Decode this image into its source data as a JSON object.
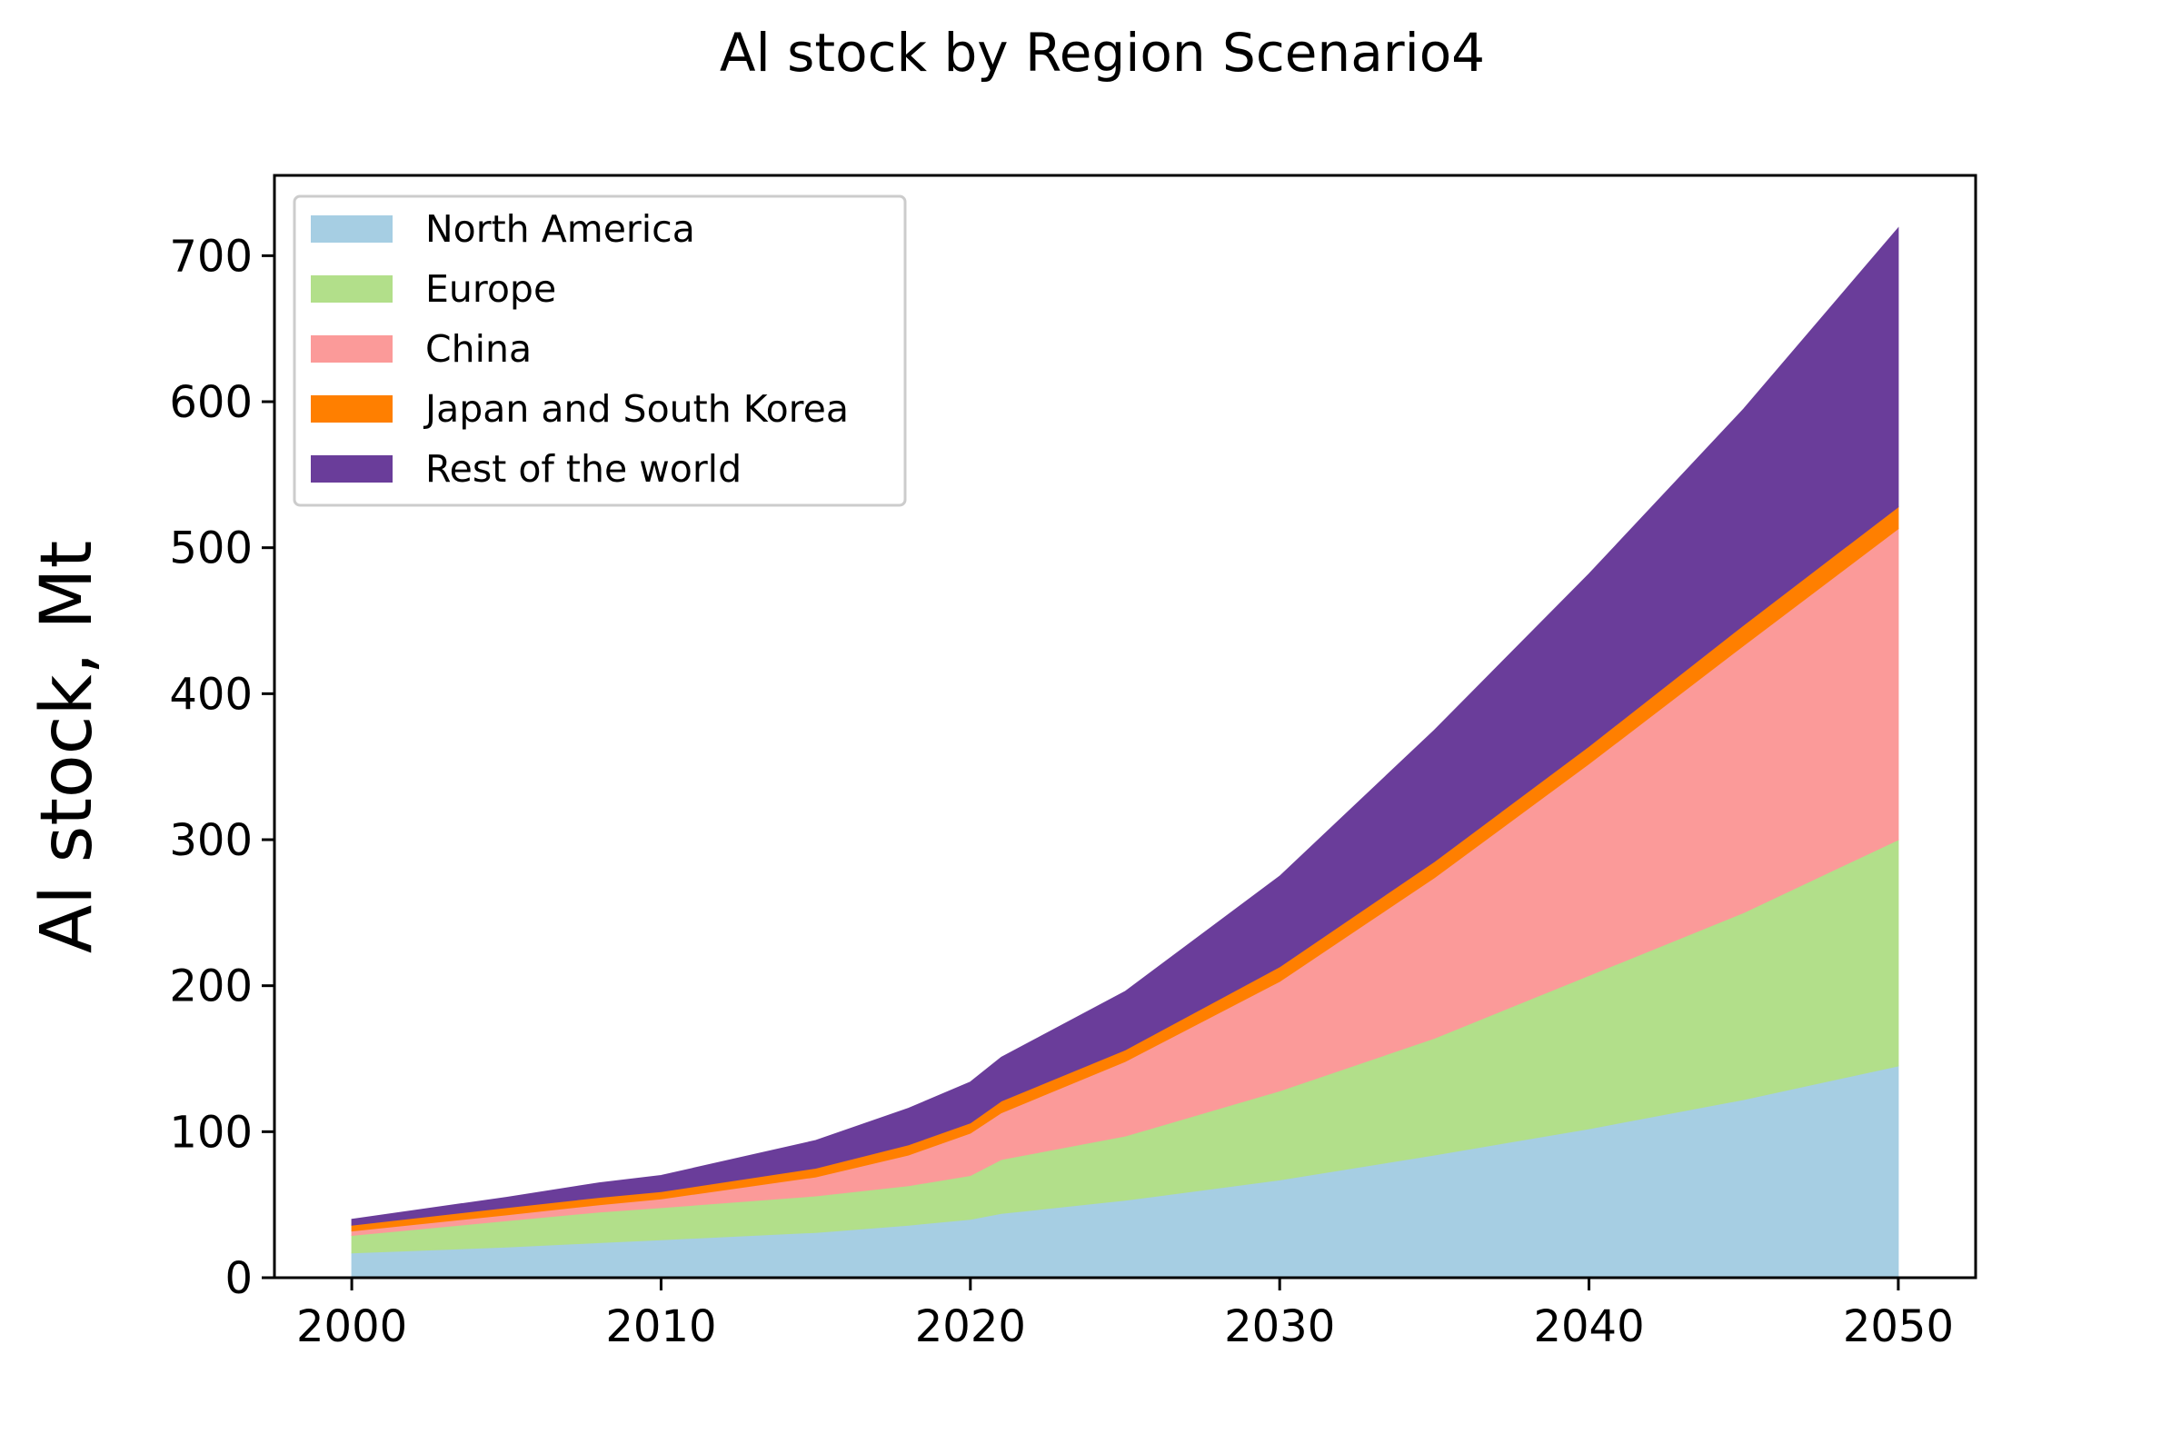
{
  "chart_data": {
    "type": "area",
    "stacked": true,
    "title": "Al stock by Region Scenario4",
    "xlabel": "",
    "ylabel": "Al stock, Mt",
    "xlim": [
      1997.5,
      2052.5
    ],
    "ylim": [
      0,
      755
    ],
    "x_ticks": [
      2000,
      2010,
      2020,
      2030,
      2040,
      2050
    ],
    "y_ticks": [
      0,
      100,
      200,
      300,
      400,
      500,
      600,
      700
    ],
    "grid": false,
    "legend_position": "top-left",
    "x": [
      2000,
      2005,
      2008,
      2010,
      2015,
      2018,
      2020,
      2021,
      2025,
      2030,
      2035,
      2040,
      2045,
      2050
    ],
    "series": [
      {
        "name": "North America",
        "color": "#a6cee3",
        "values": [
          17,
          21,
          24,
          26,
          31,
          36,
          40,
          44,
          53,
          67,
          84,
          102,
          122,
          145
        ]
      },
      {
        "name": "Europe",
        "color": "#b2df8a",
        "values": [
          12,
          18,
          21,
          22,
          25,
          27,
          30,
          37,
          44,
          61,
          80,
          105,
          128,
          155
        ]
      },
      {
        "name": "China",
        "color": "#fb9a99",
        "values": [
          3,
          4,
          5,
          6,
          13,
          21,
          29,
          32,
          51,
          75,
          110,
          145,
          183,
          213
        ]
      },
      {
        "name": "Japan and South Korea",
        "color": "#ff7f00",
        "values": [
          4,
          5,
          5,
          5,
          6,
          7,
          7,
          8,
          8,
          10,
          11,
          12,
          14,
          15
        ]
      },
      {
        "name": "Rest of the world",
        "color": "#6a3d9a",
        "values": [
          4,
          7,
          10,
          11,
          19,
          25,
          28,
          30,
          40,
          62,
          90,
          118,
          148,
          191
        ]
      }
    ]
  }
}
